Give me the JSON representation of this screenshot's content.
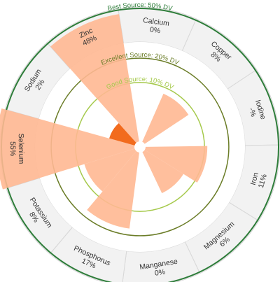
{
  "chart_data": {
    "type": "polar-bar",
    "title": "",
    "unit": "%",
    "categories": [
      "Calcium",
      "Copper",
      "Iodine",
      "Iron",
      "Magnesium",
      "Manganese",
      "Phosphorus",
      "Potassium",
      "Selenium",
      "Sodium",
      "Zinc"
    ],
    "value_labels": [
      "0%",
      "8%",
      "-%",
      "11%",
      "6%",
      "0%",
      "17%",
      "8%",
      "55%",
      "2%",
      "48%"
    ],
    "values": [
      0,
      8,
      null,
      11,
      6,
      0,
      17,
      8,
      55,
      2,
      48
    ],
    "rlim": [
      0,
      50
    ],
    "thresholds": [
      {
        "label": "Good Source: 10% DV",
        "value": 10,
        "color": "#a5c94b"
      },
      {
        "label": "Excellent Source: 20% DV",
        "value": 20,
        "color": "#6b7d28"
      },
      {
        "label": "Best Source: 50% DV",
        "value": 50,
        "color": "#2e7d3a"
      }
    ],
    "colors": {
      "bar_light": "#ffb892",
      "bar_dark": "#f26b1d",
      "segment_fill": "#f2f2f2",
      "segment_stroke": "#d8d8d8"
    }
  }
}
